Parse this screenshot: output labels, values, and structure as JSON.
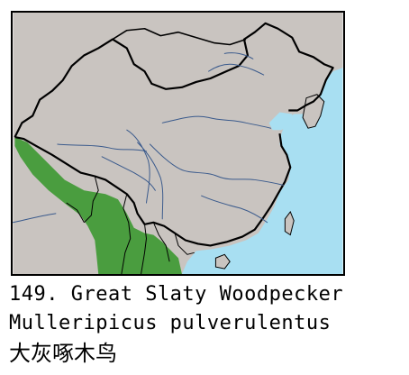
{
  "caption": {
    "line1": "149. Great Slaty Woodpecker",
    "line2": "Mulleripicus pulverulentus",
    "line3": "大灰啄木鸟"
  },
  "colors": {
    "sea": "#a8dff2",
    "land": "#c9c4c0",
    "range": "#4a9d3f",
    "border": "#000000",
    "river": "#3a5a8c"
  }
}
